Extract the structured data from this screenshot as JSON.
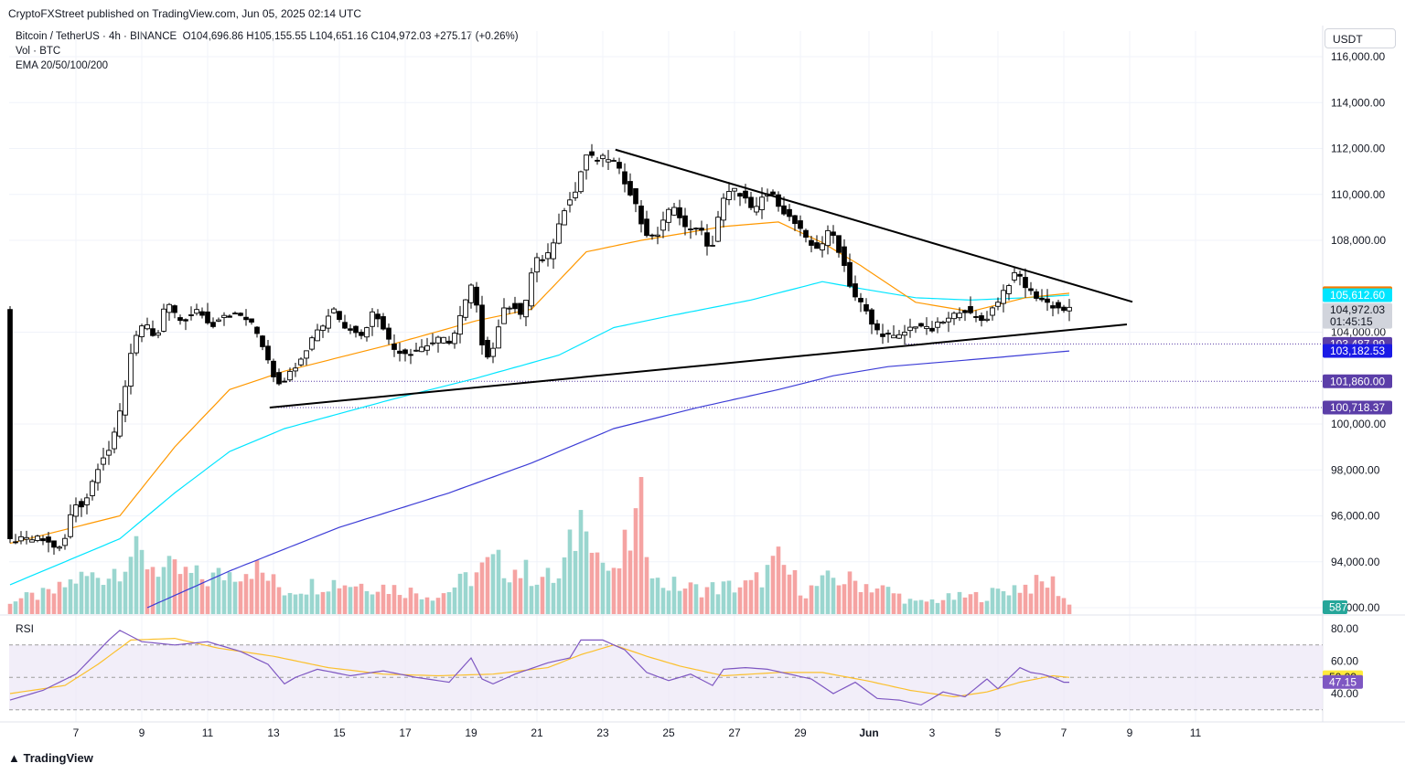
{
  "header": {
    "published": "CryptoFXStreet published on TradingView.com, Jun 05, 2025 02:14 UTC",
    "symbol": "Bitcoin / TetherUS · 4h · BINANCE",
    "ohlc": "O104,696.86 H105,155.55 L104,651.16 C104,972.03 +275.17 (+0.26%)",
    "vol_label": "Vol · BTC",
    "ema_label": "EMA 20/50/100/200",
    "currency": "USDT",
    "brand": "TradingView"
  },
  "price_badges": [
    {
      "text": "105,697.01",
      "color": "#f57c00",
      "value": 105697.01
    },
    {
      "text": "105,612.60",
      "color": "#00e5ff",
      "value": 105612.6
    },
    {
      "text": "104,972.03",
      "color": "#d1d4dc",
      "value": 104972.03,
      "sub": "01:45:15"
    },
    {
      "text": "103,487.99",
      "color": "#5b3ea8",
      "value": 103487.99
    },
    {
      "text": "103,182.53",
      "color": "#1a1ae6",
      "value": 103182.53
    },
    {
      "text": "101,860.00",
      "color": "#5b3ea8",
      "value": 101860
    },
    {
      "text": "100,718.37",
      "color": "#5b3ea8",
      "value": 100718.37
    }
  ],
  "volume_badge": "587",
  "rsi": {
    "label": "RSI",
    "ticks": [
      "80.00",
      "60.00",
      "40.00"
    ],
    "badges": [
      {
        "text": "50.09",
        "color": "#ffeb3b"
      },
      {
        "text": "47.15",
        "color": "#7e57c2"
      }
    ]
  },
  "colors": {
    "up": "#26a69a",
    "down": "#ef5350",
    "ema20": "#ff9800",
    "ema50": "#00e5ff",
    "ema200": "#3d3dd6",
    "rsi_line": "#7e57c2",
    "rsi_ma": "#fbc02d"
  },
  "chart_data": {
    "type": "candlestick",
    "title": "Bitcoin / TetherUS · 4h · BINANCE",
    "y_ticks": [
      "116,000.00",
      "114,000.00",
      "112,000.00",
      "110,000.00",
      "108,000.00",
      "104,000.00",
      "100,000.00",
      "98,000.00",
      "96,000.00",
      "94,000.00",
      "92,000.00"
    ],
    "x_ticks": [
      "7",
      "9",
      "11",
      "13",
      "15",
      "17",
      "19",
      "21",
      "23",
      "25",
      "27",
      "29",
      "Jun",
      "3",
      "5",
      "7",
      "9",
      "11"
    ],
    "ylim": [
      92000,
      116000
    ],
    "price_path": [
      [
        0,
        94900
      ],
      [
        6,
        95000
      ],
      [
        10,
        94500
      ],
      [
        12,
        96500
      ],
      [
        14,
        96500
      ],
      [
        17,
        98500
      ],
      [
        19,
        99000
      ],
      [
        21,
        101000
      ],
      [
        23,
        103800
      ],
      [
        25,
        104400
      ],
      [
        27,
        103500
      ],
      [
        29,
        105400
      ],
      [
        31,
        104500
      ],
      [
        33,
        104600
      ],
      [
        35,
        105000
      ],
      [
        37,
        104200
      ],
      [
        39,
        104800
      ],
      [
        43,
        104700
      ],
      [
        45,
        104200
      ],
      [
        47,
        103200
      ],
      [
        49,
        101800
      ],
      [
        51,
        102000
      ],
      [
        52,
        102400
      ],
      [
        55,
        103500
      ],
      [
        57,
        104400
      ],
      [
        58,
        104200
      ],
      [
        59,
        105300
      ],
      [
        61,
        104300
      ],
      [
        63,
        104200
      ],
      [
        65,
        103700
      ],
      [
        66,
        104900
      ],
      [
        68,
        104600
      ],
      [
        70,
        103300
      ],
      [
        73,
        103100
      ],
      [
        75,
        103300
      ],
      [
        79,
        103700
      ],
      [
        81,
        103600
      ],
      [
        83,
        105000
      ],
      [
        85,
        106300
      ],
      [
        86,
        103800
      ],
      [
        88,
        102800
      ],
      [
        90,
        104800
      ],
      [
        92,
        105300
      ],
      [
        94,
        104600
      ],
      [
        96,
        107300
      ],
      [
        98,
        107000
      ],
      [
        100,
        108300
      ],
      [
        102,
        109800
      ],
      [
        104,
        110200
      ],
      [
        105,
        111800
      ],
      [
        107,
        111500
      ],
      [
        110,
        111600
      ],
      [
        112,
        110800
      ],
      [
        114,
        109900
      ],
      [
        116,
        108400
      ],
      [
        118,
        108000
      ],
      [
        120,
        109200
      ],
      [
        122,
        109400
      ],
      [
        124,
        108300
      ],
      [
        126,
        108700
      ],
      [
        128,
        107300
      ],
      [
        130,
        109600
      ],
      [
        132,
        110200
      ],
      [
        134,
        110000
      ],
      [
        136,
        109100
      ],
      [
        138,
        110100
      ],
      [
        140,
        109800
      ],
      [
        142,
        109100
      ],
      [
        144,
        108600
      ],
      [
        146,
        107800
      ],
      [
        148,
        107700
      ],
      [
        150,
        108500
      ],
      [
        152,
        107300
      ],
      [
        154,
        105700
      ],
      [
        156,
        105100
      ],
      [
        158,
        104100
      ],
      [
        160,
        103900
      ],
      [
        162,
        103700
      ],
      [
        164,
        104100
      ],
      [
        166,
        104400
      ],
      [
        168,
        104000
      ],
      [
        170,
        104400
      ],
      [
        172,
        104600
      ],
      [
        174,
        105100
      ],
      [
        176,
        104600
      ],
      [
        178,
        104500
      ],
      [
        180,
        105200
      ],
      [
        182,
        106000
      ],
      [
        184,
        106600
      ],
      [
        186,
        105800
      ],
      [
        188,
        105500
      ],
      [
        190,
        105200
      ],
      [
        192,
        105000
      ],
      [
        193,
        104970
      ]
    ],
    "ema20_path": [
      [
        0,
        94800
      ],
      [
        20,
        96000
      ],
      [
        30,
        99000
      ],
      [
        40,
        101500
      ],
      [
        50,
        102300
      ],
      [
        70,
        103500
      ],
      [
        85,
        104500
      ],
      [
        95,
        105000
      ],
      [
        105,
        107500
      ],
      [
        115,
        108000
      ],
      [
        130,
        108600
      ],
      [
        140,
        108800
      ],
      [
        148,
        107900
      ],
      [
        155,
        106900
      ],
      [
        165,
        105300
      ],
      [
        175,
        104900
      ],
      [
        185,
        105500
      ],
      [
        193,
        105697
      ]
    ],
    "ema50_path": [
      [
        0,
        93000
      ],
      [
        20,
        95000
      ],
      [
        30,
        97000
      ],
      [
        40,
        98800
      ],
      [
        50,
        99800
      ],
      [
        70,
        101100
      ],
      [
        85,
        102000
      ],
      [
        100,
        103000
      ],
      [
        110,
        104200
      ],
      [
        120,
        104700
      ],
      [
        135,
        105400
      ],
      [
        148,
        106200
      ],
      [
        155,
        105900
      ],
      [
        165,
        105500
      ],
      [
        175,
        105400
      ],
      [
        185,
        105500
      ],
      [
        193,
        105612
      ]
    ],
    "ema200_path": [
      [
        25,
        92000
      ],
      [
        40,
        93600
      ],
      [
        60,
        95500
      ],
      [
        80,
        97000
      ],
      [
        95,
        98300
      ],
      [
        110,
        99800
      ],
      [
        125,
        100700
      ],
      [
        140,
        101500
      ],
      [
        150,
        102100
      ],
      [
        160,
        102500
      ],
      [
        170,
        102700
      ],
      [
        180,
        102900
      ],
      [
        193,
        103182
      ]
    ],
    "volume_path": [
      [
        0,
        1.5
      ],
      [
        8,
        2.4
      ],
      [
        12,
        3.9
      ],
      [
        18,
        4.5
      ],
      [
        22,
        6.8
      ],
      [
        28,
        5.0
      ],
      [
        36,
        3.9
      ],
      [
        44,
        5.4
      ],
      [
        50,
        2.6
      ],
      [
        58,
        3.6
      ],
      [
        66,
        3.3
      ],
      [
        78,
        2.0
      ],
      [
        84,
        4.2
      ],
      [
        88,
        5.7
      ],
      [
        96,
        4.3
      ],
      [
        100,
        3.8
      ],
      [
        104,
        10.6
      ],
      [
        105,
        13.6
      ],
      [
        107,
        6.9
      ],
      [
        110,
        4.0
      ],
      [
        115,
        11.5
      ],
      [
        118,
        3.5
      ],
      [
        125,
        2.8
      ],
      [
        135,
        3.2
      ],
      [
        140,
        5.8
      ],
      [
        145,
        2.5
      ],
      [
        150,
        4.0
      ],
      [
        155,
        3.5
      ],
      [
        160,
        2.6
      ],
      [
        165,
        1.2
      ],
      [
        170,
        1.7
      ],
      [
        178,
        2.1
      ],
      [
        183,
        3.0
      ],
      [
        190,
        3.5
      ],
      [
        193,
        1.0
      ]
    ],
    "rsi_path": [
      [
        0,
        36
      ],
      [
        6,
        42
      ],
      [
        12,
        52
      ],
      [
        18,
        73
      ],
      [
        20,
        79
      ],
      [
        24,
        72
      ],
      [
        30,
        70
      ],
      [
        36,
        72
      ],
      [
        42,
        66
      ],
      [
        47,
        58
      ],
      [
        50,
        46
      ],
      [
        52,
        50
      ],
      [
        56,
        55
      ],
      [
        62,
        51
      ],
      [
        68,
        54
      ],
      [
        74,
        50
      ],
      [
        80,
        47
      ],
      [
        84,
        62
      ],
      [
        86,
        49
      ],
      [
        88,
        46
      ],
      [
        92,
        52
      ],
      [
        98,
        59
      ],
      [
        102,
        62
      ],
      [
        104,
        73
      ],
      [
        108,
        73
      ],
      [
        112,
        67
      ],
      [
        116,
        53
      ],
      [
        120,
        48
      ],
      [
        124,
        52
      ],
      [
        128,
        45
      ],
      [
        130,
        55
      ],
      [
        134,
        56
      ],
      [
        138,
        55
      ],
      [
        142,
        52
      ],
      [
        146,
        49
      ],
      [
        150,
        40
      ],
      [
        154,
        47
      ],
      [
        158,
        37
      ],
      [
        162,
        36
      ],
      [
        166,
        33
      ],
      [
        170,
        41
      ],
      [
        174,
        38
      ],
      [
        178,
        49
      ],
      [
        180,
        43
      ],
      [
        184,
        56
      ],
      [
        186,
        53
      ],
      [
        188,
        52
      ],
      [
        190,
        50
      ],
      [
        192,
        47
      ],
      [
        193,
        47
      ]
    ],
    "rsi_ma_path": [
      [
        0,
        40
      ],
      [
        10,
        45
      ],
      [
        16,
        58
      ],
      [
        22,
        73
      ],
      [
        30,
        74
      ],
      [
        38,
        68
      ],
      [
        48,
        63
      ],
      [
        58,
        56
      ],
      [
        68,
        52
      ],
      [
        78,
        51
      ],
      [
        88,
        52
      ],
      [
        98,
        56
      ],
      [
        104,
        64
      ],
      [
        110,
        70
      ],
      [
        116,
        63
      ],
      [
        122,
        57
      ],
      [
        130,
        51
      ],
      [
        140,
        53
      ],
      [
        148,
        53
      ],
      [
        156,
        48
      ],
      [
        164,
        42
      ],
      [
        172,
        38
      ],
      [
        178,
        41
      ],
      [
        184,
        47
      ],
      [
        190,
        51
      ],
      [
        193,
        50
      ]
    ]
  }
}
